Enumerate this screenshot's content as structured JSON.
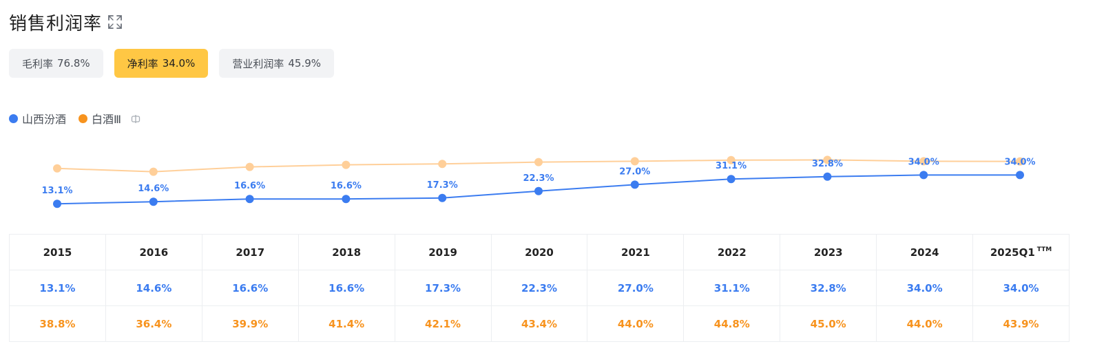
{
  "header": {
    "title": "销售利润率",
    "expand_icon": "expand-icon"
  },
  "tabs": [
    {
      "label": "毛利率",
      "value": "76.8%",
      "active": false
    },
    {
      "label": "净利率",
      "value": "34.0%",
      "active": true
    },
    {
      "label": "营业利润率",
      "value": "45.9%",
      "active": false
    }
  ],
  "legend": {
    "items": [
      {
        "label": "山西汾酒",
        "color": "#3b7cf0"
      },
      {
        "label": "白酒Ⅲ",
        "color": "#f7931e"
      }
    ],
    "toggle_icon": "toggle-icon"
  },
  "chart_data": {
    "type": "line",
    "categories": [
      "2015",
      "2016",
      "2017",
      "2018",
      "2019",
      "2020",
      "2021",
      "2022",
      "2023",
      "2024",
      "2025Q1"
    ],
    "series": [
      {
        "name": "山西汾酒",
        "color": "#3b7cf0",
        "values": [
          13.1,
          14.6,
          16.6,
          16.6,
          17.3,
          22.3,
          27.0,
          31.1,
          32.8,
          34.0,
          34.0
        ],
        "labels_shown": true
      },
      {
        "name": "白酒Ⅲ",
        "color": "#ffcf99",
        "values": [
          38.8,
          36.4,
          39.9,
          41.4,
          42.1,
          43.4,
          44.0,
          44.8,
          45.0,
          44.0,
          43.9
        ],
        "labels_shown": false
      }
    ],
    "title": "",
    "xlabel": "",
    "ylabel": "",
    "grid": false,
    "legend_position": "top-left"
  },
  "table": {
    "years": [
      "2015",
      "2016",
      "2017",
      "2018",
      "2019",
      "2020",
      "2021",
      "2022",
      "2023",
      "2024",
      "2025Q1"
    ],
    "last_year_suffix": "TTM",
    "row_a": [
      "13.1%",
      "14.6%",
      "16.6%",
      "16.6%",
      "17.3%",
      "22.3%",
      "27.0%",
      "31.1%",
      "32.8%",
      "34.0%",
      "34.0%"
    ],
    "row_b": [
      "38.8%",
      "36.4%",
      "39.9%",
      "41.4%",
      "42.1%",
      "43.4%",
      "44.0%",
      "44.8%",
      "45.0%",
      "44.0%",
      "43.9%"
    ]
  }
}
